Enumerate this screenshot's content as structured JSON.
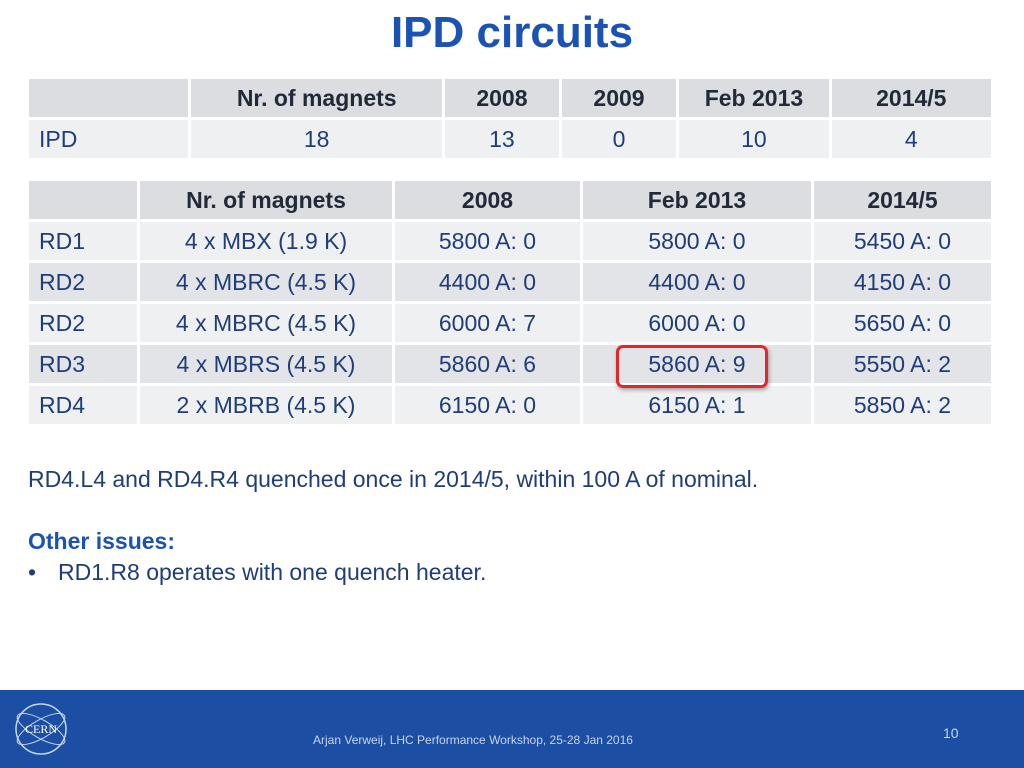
{
  "title": "IPD circuits",
  "table1": {
    "headers": [
      "",
      "Nr. of magnets",
      "2008",
      "2009",
      "Feb 2013",
      "2014/5"
    ],
    "rows": [
      [
        "IPD",
        "18",
        "13",
        "0",
        "10",
        "4"
      ]
    ]
  },
  "table2": {
    "headers": [
      "",
      "Nr. of magnets",
      "2008",
      "Feb 2013",
      "2014/5"
    ],
    "rows": [
      [
        "RD1",
        "4 x MBX (1.9 K)",
        "5800 A: 0",
        "5800 A: 0",
        "5450 A: 0"
      ],
      [
        "RD2",
        "4 x MBRC (4.5 K)",
        "4400 A: 0",
        "4400 A: 0",
        "4150 A: 0"
      ],
      [
        "RD2",
        "4 x MBRC (4.5 K)",
        "6000 A: 7",
        "6000 A: 0",
        "5650 A: 0"
      ],
      [
        "RD3",
        "4 x MBRS (4.5 K)",
        "5860 A: 6",
        "5860 A: 9",
        "5550 A: 2"
      ],
      [
        "RD4",
        "2 x MBRB (4.5 K)",
        "6150 A: 0",
        "6150 A: 1",
        "5850 A: 2"
      ]
    ]
  },
  "note": "RD4.L4 and RD4.R4 quenched once in 2014/5, within 100 A of nominal.",
  "issues": {
    "heading": "Other issues:",
    "bullet": "•",
    "items": [
      "RD1.R8 operates with one quench heater."
    ]
  },
  "footer": {
    "logo_text": "CERN",
    "text": "Arjan Verweij, LHC Performance Workshop, 25-28 Jan 2016",
    "page": "10"
  },
  "colors": {
    "title": "#1a53b5",
    "footer_bg": "#1c4fa3",
    "highlight": "#e3262a"
  }
}
